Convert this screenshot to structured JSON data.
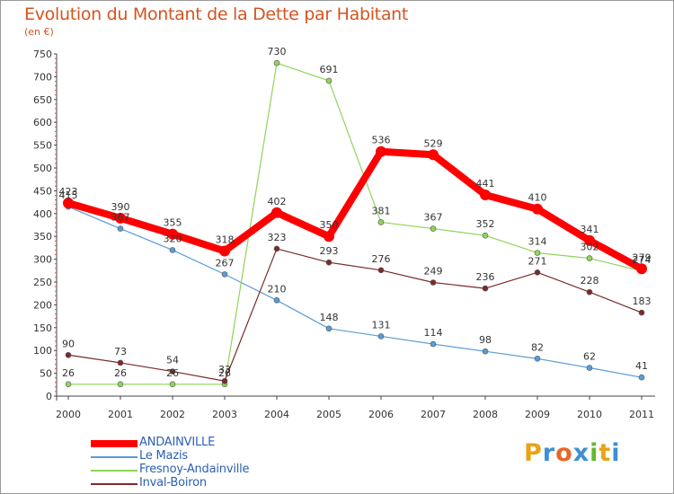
{
  "title": "Evolution du Montant de la Dette par Habitant",
  "subtitle": "(en €)",
  "logo": {
    "letters": [
      "P",
      "r",
      "o",
      "x",
      "i",
      "t",
      "i"
    ],
    "colors": [
      "#e8a317",
      "#3e8fd6",
      "#e8662a",
      "#3e8fd6",
      "#66b832",
      "#e8a317",
      "#3e8fd6"
    ]
  },
  "chart_data": {
    "type": "line",
    "x": [
      "2000",
      "2001",
      "2002",
      "2003",
      "2004",
      "2005",
      "2006",
      "2007",
      "2008",
      "2009",
      "2010",
      "2011"
    ],
    "ylim": [
      0,
      750
    ],
    "yticks": [
      "0",
      "50",
      "100",
      "150",
      "200",
      "250",
      "300",
      "350",
      "400",
      "450",
      "500",
      "550",
      "600",
      "650",
      "700",
      "750"
    ],
    "grid": false,
    "legend_position": "bottom-left",
    "series": [
      {
        "name": "ANDAINVILLE",
        "color": "#ff0000",
        "values": [
          423,
          390,
          355,
          318,
          402,
          350,
          536,
          529,
          441,
          410,
          341,
          279
        ]
      },
      {
        "name": "Le Mazis",
        "color": "#5b9bd5",
        "values": [
          415,
          367,
          320,
          267,
          210,
          148,
          131,
          114,
          98,
          82,
          62,
          41
        ]
      },
      {
        "name": "Fresnoy-Andainville",
        "color": "#8fd45a",
        "values": [
          26,
          26,
          26,
          26,
          730,
          691,
          381,
          367,
          352,
          314,
          302,
          274
        ]
      },
      {
        "name": "Inval-Boiron",
        "color": "#7b2a2a",
        "values": [
          90,
          73,
          54,
          33,
          323,
          293,
          276,
          249,
          236,
          271,
          228,
          183
        ]
      }
    ]
  }
}
